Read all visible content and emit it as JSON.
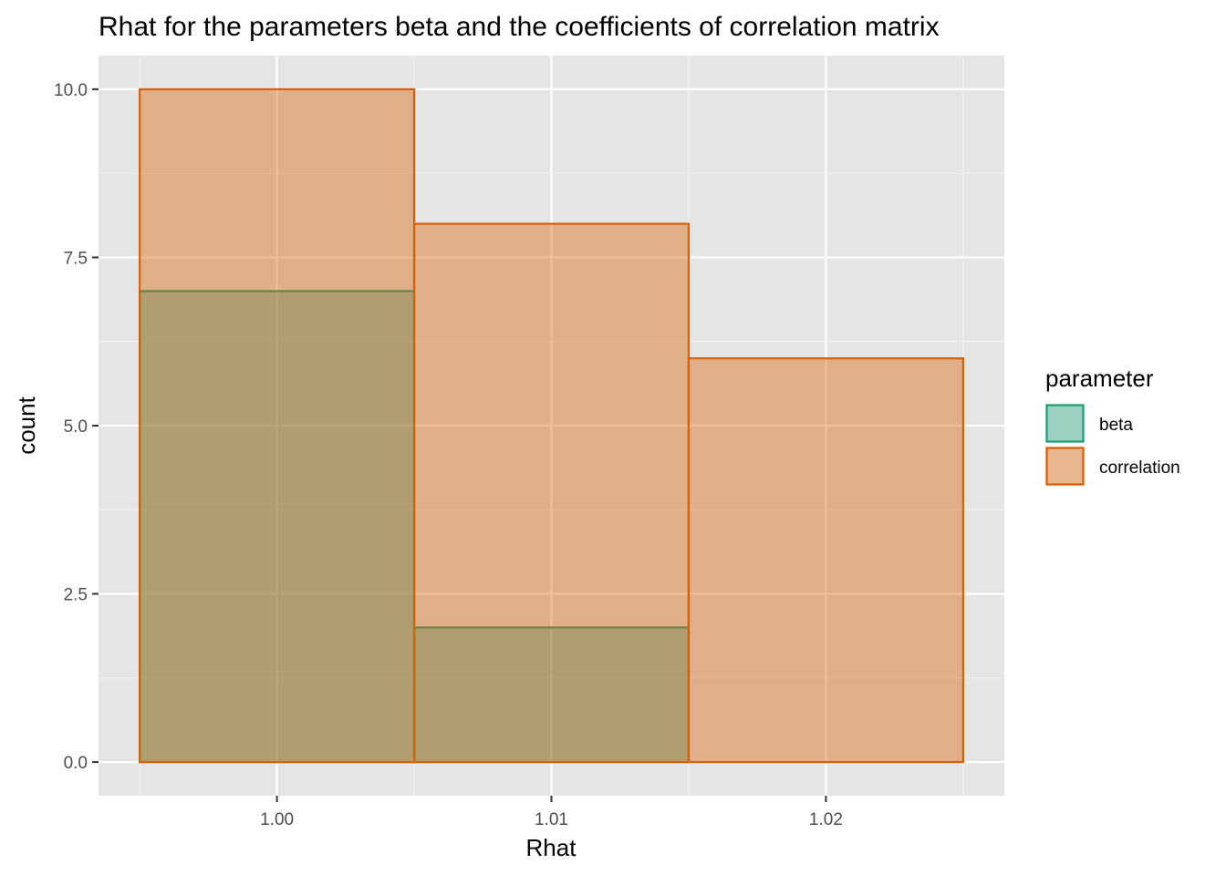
{
  "chart_data": {
    "type": "bar",
    "title": "Rhat for the parameters beta and the coefficients of correlation matrix",
    "xlabel": "Rhat",
    "ylabel": "count",
    "x_ticks": [
      "1.00",
      "1.01",
      "1.02"
    ],
    "y_ticks": [
      "0.0",
      "2.5",
      "5.0",
      "7.5",
      "10.0"
    ],
    "x_tick_values": [
      1.0,
      1.01,
      1.02
    ],
    "y_tick_values": [
      0,
      2.5,
      5,
      7.5,
      10
    ],
    "xlim": [
      0.9935,
      1.0265
    ],
    "ylim": [
      -0.5,
      10.5
    ],
    "bins": [
      {
        "xmin": 0.995,
        "xmax": 1.005
      },
      {
        "xmin": 1.005,
        "xmax": 1.015
      },
      {
        "xmin": 1.015,
        "xmax": 1.025
      }
    ],
    "position": "identity (overlapping)",
    "series": [
      {
        "name": "beta",
        "values": [
          7,
          2,
          0
        ],
        "fill": "#1b9e77",
        "stroke": "#1b9e77"
      },
      {
        "name": "correlation",
        "values": [
          10,
          8,
          6
        ],
        "fill": "#d95f02",
        "stroke": "#d95f02"
      }
    ],
    "legend": {
      "title": "parameter",
      "entries": [
        "beta",
        "correlation"
      ],
      "position": "right"
    },
    "grid": true
  }
}
